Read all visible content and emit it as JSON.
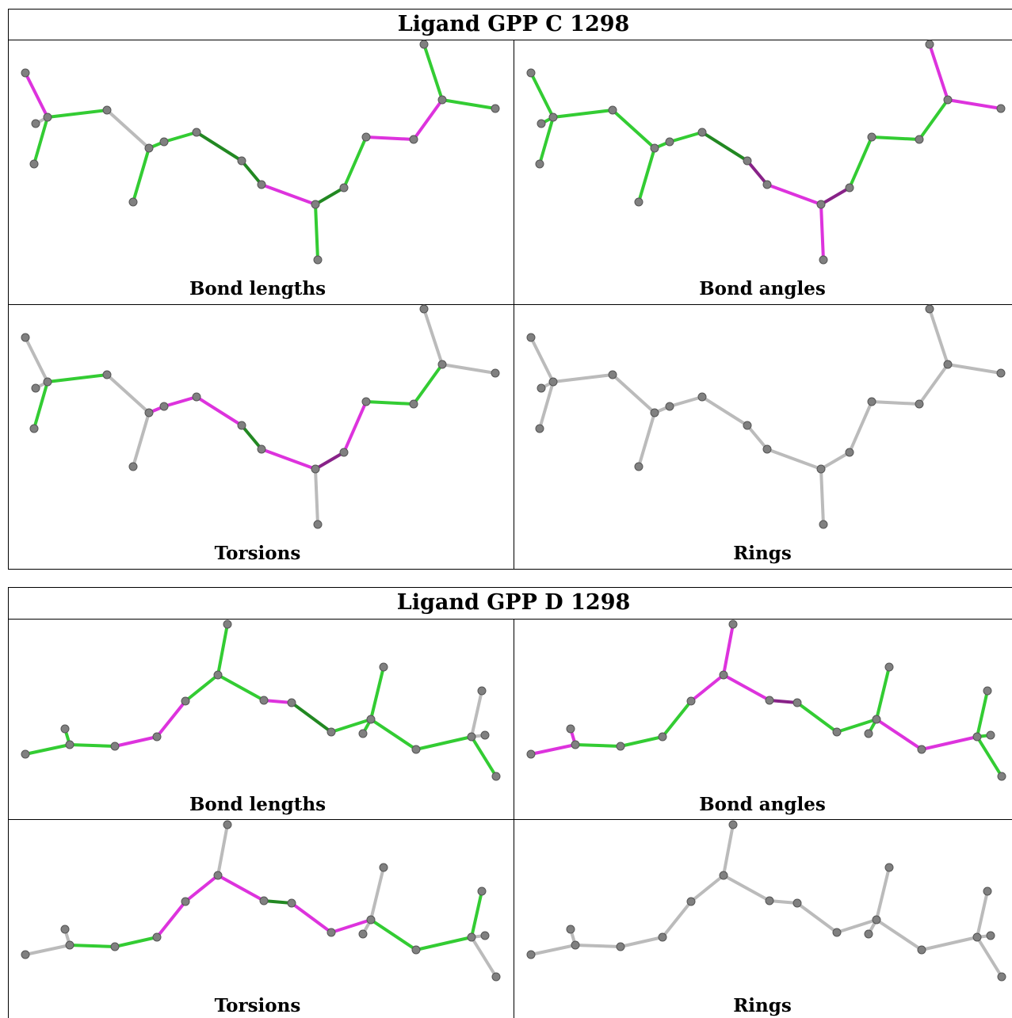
{
  "tables": [
    {
      "title": "Ligand GPP C 1298",
      "panels": [
        {
          "caption": "Bond lengths"
        },
        {
          "caption": "Bond angles"
        },
        {
          "caption": "Torsions"
        },
        {
          "caption": "Rings"
        }
      ]
    },
    {
      "title": "Ligand GPP D 1298",
      "panels": [
        {
          "caption": "Bond lengths"
        },
        {
          "caption": "Bond angles"
        },
        {
          "caption": "Torsions"
        },
        {
          "caption": "Rings"
        }
      ]
    }
  ]
}
